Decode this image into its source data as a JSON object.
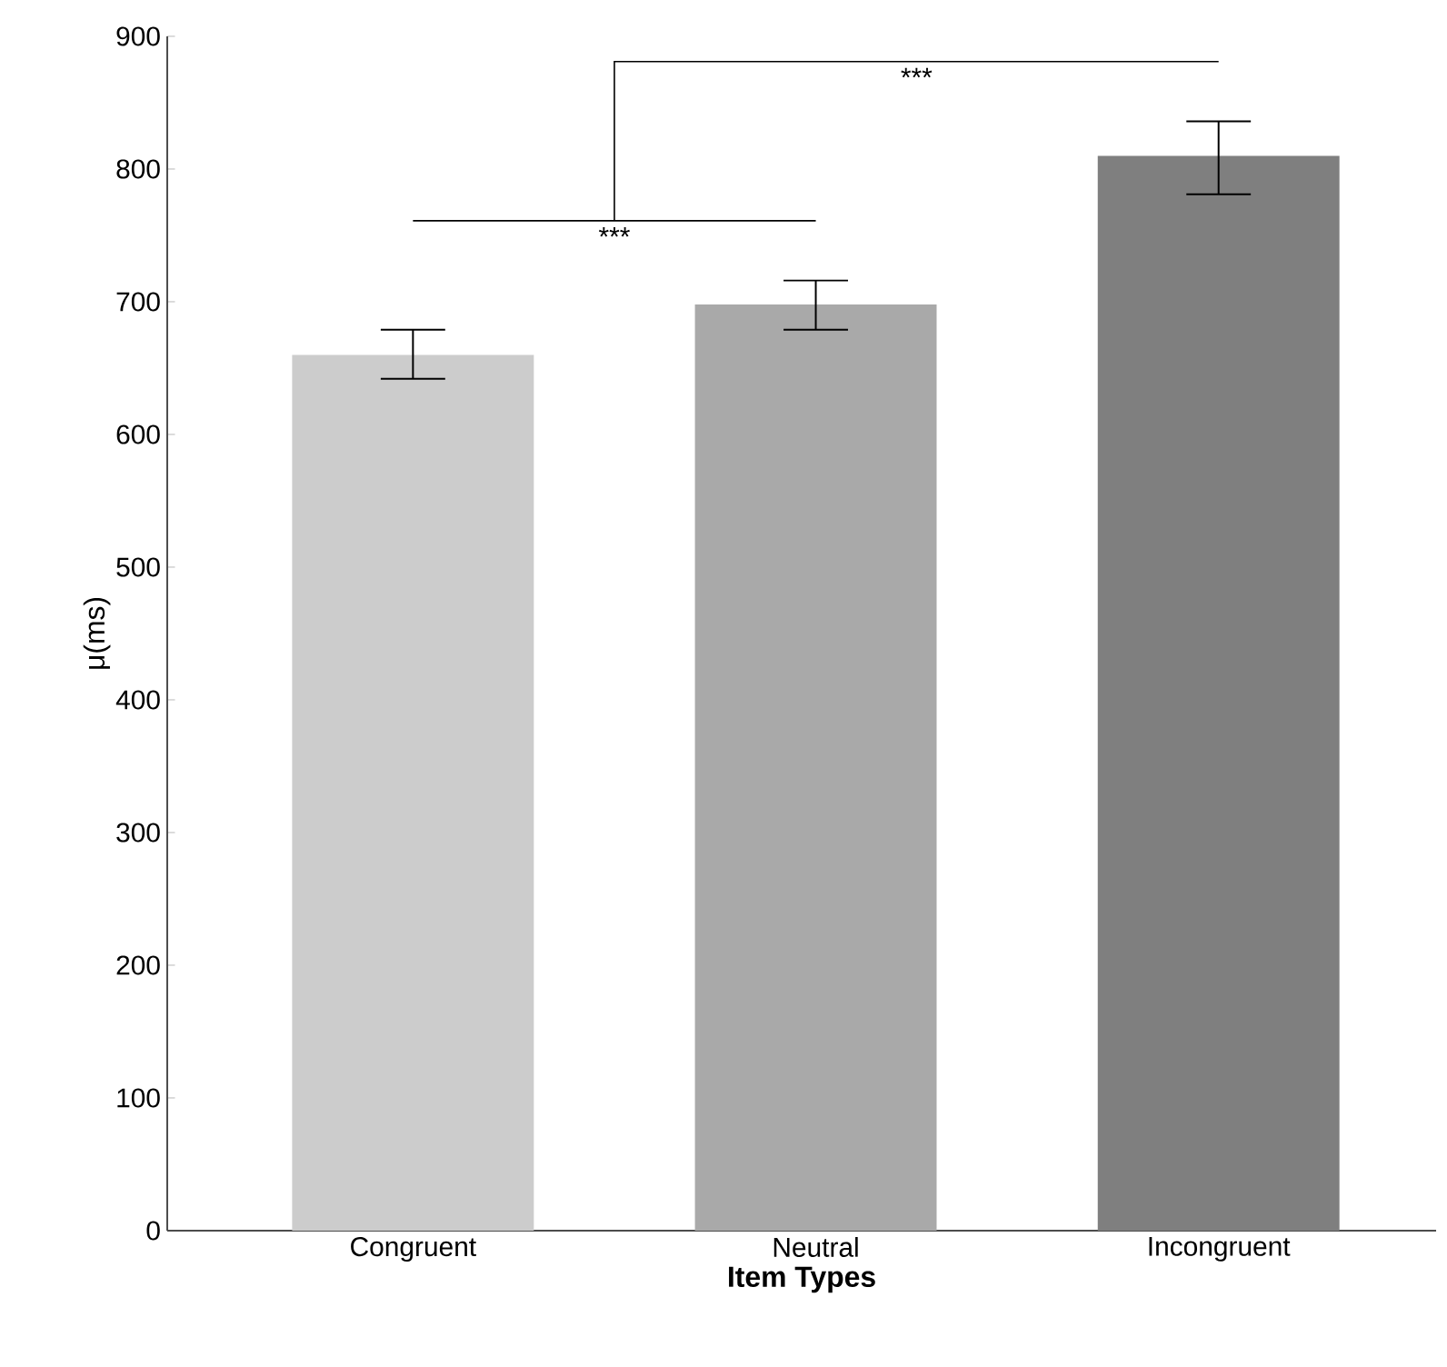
{
  "chart_data": {
    "type": "bar",
    "xlabel": "**Item Types**",
    "ylabel": "μ(ms)",
    "categories": [
      "Congruent",
      "Neutral",
      "Incongruent"
    ],
    "values": [
      660,
      698,
      810
    ],
    "colors": [
      "#cccccc",
      "#a9a9a9",
      "#7f7f7f"
    ],
    "errors": [
      [
        642,
        679
      ],
      [
        679,
        716
      ],
      [
        781,
        836
      ]
    ],
    "ylim": [
      0,
      900
    ],
    "yticks": [
      0,
      100,
      200,
      300,
      400,
      500,
      600,
      700,
      800,
      900
    ],
    "grid": false,
    "annotations": [
      "***",
      "***"
    ]
  }
}
